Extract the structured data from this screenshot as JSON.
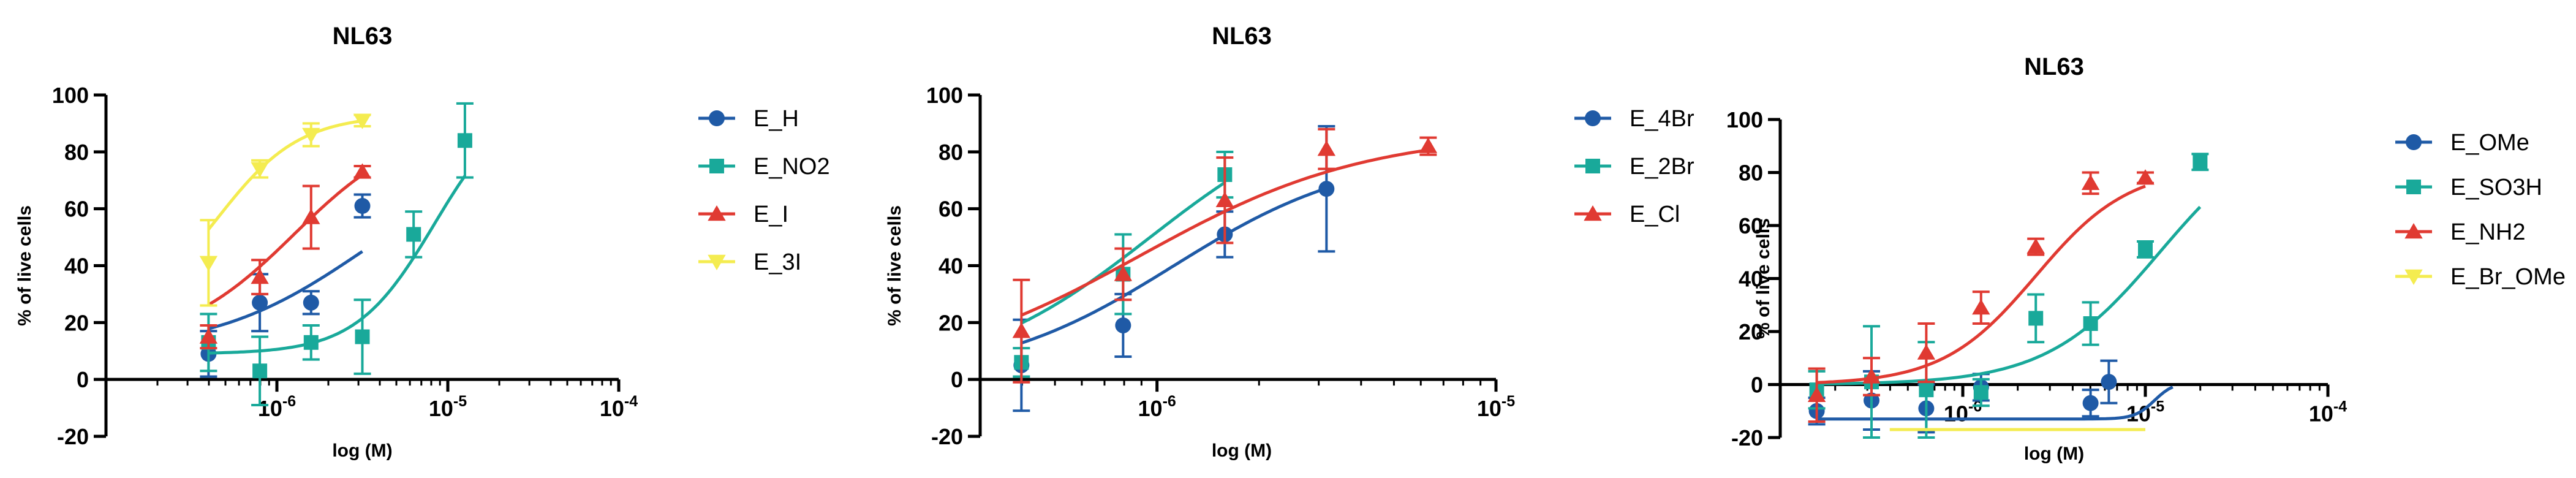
{
  "chart_data": [
    {
      "type": "scatter",
      "title": "NL63",
      "xlabel": "log (M)",
      "ylabel": "% of live cells",
      "x_scale": "log10",
      "xlim": [
        -7,
        -4
      ],
      "ylim": [
        -20,
        100
      ],
      "yticks": [
        -20,
        0,
        20,
        40,
        60,
        80,
        100
      ],
      "xticks": [
        {
          "x": -6,
          "base": "10",
          "exp": "-6"
        },
        {
          "x": -5,
          "base": "10",
          "exp": "-5"
        },
        {
          "x": -4,
          "base": "10",
          "exp": "-4"
        }
      ],
      "series": [
        {
          "name": "E_H",
          "marker": "circle",
          "color": "#1f5aa6",
          "points": [
            {
              "x": -6.4,
              "y": 9,
              "err": 8
            },
            {
              "x": -6.1,
              "y": 27,
              "err": 10
            },
            {
              "x": -5.8,
              "y": 27,
              "err": 4
            },
            {
              "x": -5.5,
              "y": 61,
              "err": 4
            }
          ],
          "fit": {
            "bottom": 10,
            "top": 80,
            "logEC50": -5.5,
            "hill": 1.0,
            "from": -6.4,
            "to": -5.5
          }
        },
        {
          "name": "E_NO2",
          "marker": "square",
          "color": "#19a99a",
          "points": [
            {
              "x": -6.4,
              "y": 13,
              "err": 10
            },
            {
              "x": -6.1,
              "y": 3,
              "err": 12
            },
            {
              "x": -5.8,
              "y": 13,
              "err": 6
            },
            {
              "x": -5.5,
              "y": 15,
              "err": 13
            },
            {
              "x": -5.2,
              "y": 51,
              "err": 8
            },
            {
              "x": -4.9,
              "y": 84,
              "err": 13
            }
          ],
          "fit": {
            "bottom": 9,
            "top": 100,
            "logEC50": -5.08,
            "hill": 1.9,
            "from": -6.4,
            "to": -4.9
          }
        },
        {
          "name": "E_I",
          "marker": "triangle",
          "color": "#e03a32",
          "points": [
            {
              "x": -6.4,
              "y": 15,
              "err": 4
            },
            {
              "x": -6.1,
              "y": 36,
              "err": 6
            },
            {
              "x": -5.8,
              "y": 57,
              "err": 11
            },
            {
              "x": -5.5,
              "y": 73,
              "err": 2
            }
          ],
          "fit": {
            "bottom": 12,
            "top": 90,
            "logEC50": -5.9,
            "hill": 1.3,
            "from": -6.4,
            "to": -5.5
          }
        },
        {
          "name": "E_3I",
          "marker": "triangle-down",
          "color": "#f4ec50",
          "points": [
            {
              "x": -6.4,
              "y": 41,
              "err": 15
            },
            {
              "x": -6.1,
              "y": 74,
              "err": 3
            },
            {
              "x": -5.8,
              "y": 86,
              "err": 4
            },
            {
              "x": -5.5,
              "y": 91,
              "err": 2
            }
          ],
          "fit": {
            "bottom": 20,
            "top": 93,
            "logEC50": -6.35,
            "hill": 1.8,
            "from": -6.4,
            "to": -5.5
          }
        }
      ]
    },
    {
      "type": "scatter",
      "title": "NL63",
      "xlabel": "log (M)",
      "ylabel": "% of live cells",
      "x_scale": "log10",
      "xlim": [
        -6.5,
        -5
      ],
      "ylim": [
        -20,
        100
      ],
      "yticks": [
        -20,
        0,
        20,
        40,
        60,
        80,
        100
      ],
      "xticks": [
        {
          "x": -6,
          "base": "10",
          "exp": "-6"
        },
        {
          "x": -5,
          "base": "10",
          "exp": "-5"
        }
      ],
      "series": [
        {
          "name": "E_4Br",
          "marker": "circle",
          "color": "#1f5aa6",
          "points": [
            {
              "x": -6.4,
              "y": 5,
              "err": 16
            },
            {
              "x": -6.1,
              "y": 19,
              "err": 11
            },
            {
              "x": -5.8,
              "y": 51,
              "err": 8
            },
            {
              "x": -5.5,
              "y": 67,
              "err": 22
            }
          ],
          "fit": {
            "bottom": 0,
            "top": 80,
            "logEC50": -5.95,
            "hill": 1.6,
            "from": -6.4,
            "to": -5.5
          }
        },
        {
          "name": "E_2Br",
          "marker": "square",
          "color": "#19a99a",
          "points": [
            {
              "x": -6.4,
              "y": 6,
              "err": 5
            },
            {
              "x": -6.1,
              "y": 37,
              "err": 14
            },
            {
              "x": -5.8,
              "y": 72,
              "err": 8
            }
          ],
          "fit": {
            "bottom": 0,
            "top": 100,
            "logEC50": -6.02,
            "hill": 1.6,
            "from": -6.4,
            "to": -5.8
          }
        },
        {
          "name": "E_Cl",
          "marker": "triangle",
          "color": "#e03a32",
          "points": [
            {
              "x": -6.4,
              "y": 17,
              "err": 18
            },
            {
              "x": -6.1,
              "y": 37,
              "err": 9
            },
            {
              "x": -5.8,
              "y": 63,
              "err": 15
            },
            {
              "x": -5.5,
              "y": 81,
              "err": 7
            },
            {
              "x": -5.2,
              "y": 82,
              "err": 3
            }
          ],
          "fit": {
            "bottom": 0,
            "top": 87,
            "logEC50": -6.05,
            "hill": 1.3,
            "from": -6.4,
            "to": -5.2
          }
        }
      ]
    },
    {
      "type": "scatter",
      "title": "NL63",
      "xlabel": "log (M)",
      "ylabel": "% of live cells",
      "x_scale": "log10",
      "xlim": [
        -7,
        -4
      ],
      "ylim": [
        -20,
        100
      ],
      "yticks": [
        -20,
        0,
        20,
        40,
        60,
        80,
        100
      ],
      "xticks": [
        {
          "x": -6,
          "base": "10",
          "exp": "-6"
        },
        {
          "x": -5,
          "base": "10",
          "exp": "-5"
        },
        {
          "x": -4,
          "base": "10",
          "exp": "-4"
        }
      ],
      "series": [
        {
          "name": "E_OMe",
          "marker": "circle",
          "color": "#1f5aa6",
          "points": [
            {
              "x": -6.8,
              "y": -10,
              "err": 5
            },
            {
              "x": -6.5,
              "y": -6,
              "err": 11
            },
            {
              "x": -6.2,
              "y": -9,
              "err": 9
            },
            {
              "x": -5.9,
              "y": -1,
              "err": 5
            },
            {
              "x": -5.3,
              "y": -7,
              "err": 5
            },
            {
              "x": -5.2,
              "y": 1,
              "err": 8
            }
          ],
          "fit": {
            "bottom": -13,
            "top": 1,
            "logEC50": -4.95,
            "hill": 8,
            "from": -6.8,
            "to": -4.85
          }
        },
        {
          "name": "E_SO3H",
          "marker": "square",
          "color": "#19a99a",
          "points": [
            {
              "x": -6.8,
              "y": -2,
              "err": 7
            },
            {
              "x": -6.5,
              "y": 1,
              "err": 21
            },
            {
              "x": -6.2,
              "y": -2,
              "err": 18
            },
            {
              "x": -5.9,
              "y": -3,
              "err": 5
            },
            {
              "x": -5.6,
              "y": 25,
              "err": 9
            },
            {
              "x": -5.3,
              "y": 23,
              "err": 8
            },
            {
              "x": -5.0,
              "y": 51,
              "err": 3
            },
            {
              "x": -4.7,
              "y": 84,
              "err": 3
            }
          ],
          "fit": {
            "bottom": 0,
            "top": 100,
            "logEC50": -4.92,
            "hill": 1.4,
            "from": -6.8,
            "to": -4.7
          }
        },
        {
          "name": "E_NH2",
          "marker": "triangle",
          "color": "#e03a32",
          "points": [
            {
              "x": -6.8,
              "y": -4,
              "err": 10
            },
            {
              "x": -6.5,
              "y": 3,
              "err": 7
            },
            {
              "x": -6.2,
              "y": 12,
              "err": 11
            },
            {
              "x": -5.9,
              "y": 29,
              "err": 6
            },
            {
              "x": -5.6,
              "y": 52,
              "err": 3
            },
            {
              "x": -5.3,
              "y": 76,
              "err": 4
            },
            {
              "x": -5.0,
              "y": 78,
              "err": 2
            }
          ],
          "fit": {
            "bottom": 0,
            "top": 82,
            "logEC50": -5.6,
            "hill": 1.7,
            "from": -6.8,
            "to": -5.0
          }
        },
        {
          "name": "E_Br_OMe",
          "marker": "triangle-down",
          "color": "#f4ec50",
          "points": [],
          "fit": {
            "bottom": -17,
            "top": -17,
            "logEC50": -5.5,
            "hill": 1,
            "from": -6.4,
            "to": -5.0
          }
        }
      ]
    }
  ]
}
